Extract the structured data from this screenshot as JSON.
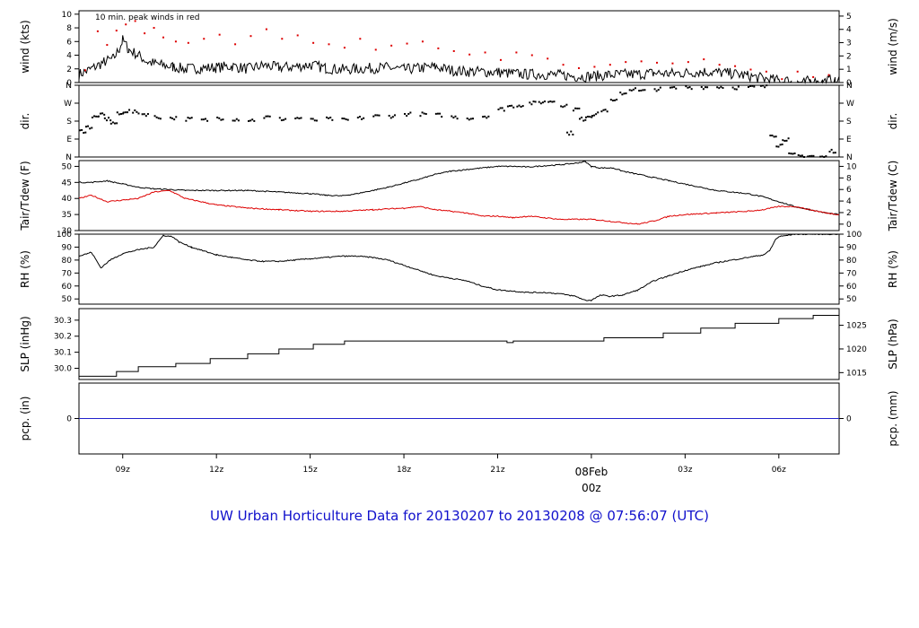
{
  "page_title": "UW Urban Horticulture Data for 20130207  to  20130208 @ 07:56:07  (UTC)",
  "colors": {
    "title": "#1111cc",
    "peak": "#dd0000",
    "dewpoint": "#dd0000",
    "precip": "#2222cc",
    "date_marker": "#dd0000",
    "line": "#000000"
  },
  "chart_data": [
    {
      "id": "wind",
      "type": "line",
      "ylabel": "wind (kts)",
      "ylabel_right": "wind (m/s)",
      "ylim": [
        0,
        10.5
      ],
      "yticks": [
        0,
        2,
        4,
        6,
        8,
        10
      ],
      "right_ylim": [
        0,
        5.4
      ],
      "right_yticks": [
        0,
        1,
        2,
        3,
        4,
        5
      ],
      "annotation": "10 min. peak winds in red",
      "series": [
        {
          "key": "speed",
          "color": "#000000",
          "style": "line",
          "x": [
            7.6,
            8.0,
            8.4,
            8.7,
            8.9,
            9.0,
            9.2,
            9.5,
            9.8,
            10.2,
            10.6,
            11.0,
            11.5,
            12.0,
            12.5,
            13.0,
            13.5,
            14.0,
            14.5,
            15.0,
            15.5,
            16.0,
            16.5,
            17.0,
            17.5,
            18.0,
            18.5,
            19.0,
            19.5,
            20.0,
            20.5,
            21.0,
            21.5,
            22.0,
            22.5,
            23.0,
            23.5,
            24.0,
            24.5,
            25.0,
            25.5,
            26.0,
            26.5,
            27.0,
            27.5,
            28.0,
            28.5,
            29.0,
            29.5,
            30.0,
            30.1,
            30.2,
            30.4,
            30.6,
            30.8,
            31.0,
            31.2,
            31.4,
            31.6,
            31.8,
            31.93
          ],
          "y": [
            1.2,
            2.0,
            3.0,
            3.5,
            5.0,
            6.2,
            4.8,
            4.0,
            3.0,
            2.6,
            2.3,
            2.0,
            2.1,
            2.2,
            2.4,
            2.0,
            2.5,
            2.2,
            2.3,
            2.6,
            2.1,
            1.9,
            2.0,
            2.1,
            2.2,
            1.9,
            2.1,
            2.3,
            1.8,
            1.6,
            1.6,
            1.5,
            1.3,
            1.2,
            1.2,
            1.1,
            0.9,
            0.9,
            1.1,
            1.2,
            1.2,
            1.4,
            1.3,
            1.4,
            1.6,
            1.5,
            1.3,
            1.0,
            0.6,
            0.3,
            0.0,
            0.4,
            0.0,
            0.0,
            0.0,
            0.3,
            0.0,
            0.0,
            0.4,
            0.0,
            0.3
          ]
        },
        {
          "key": "peak",
          "color": "#dd0000",
          "style": "dots",
          "x": [
            7.8,
            8.2,
            8.5,
            8.8,
            9.1,
            9.4,
            9.7,
            10.0,
            10.3,
            10.7,
            11.1,
            11.6,
            12.1,
            12.6,
            13.1,
            13.6,
            14.1,
            14.6,
            15.1,
            15.6,
            16.1,
            16.6,
            17.1,
            17.6,
            18.1,
            18.6,
            19.1,
            19.6,
            20.1,
            20.6,
            21.1,
            21.6,
            22.1,
            22.6,
            23.1,
            23.6,
            24.1,
            24.6,
            25.1,
            25.6,
            26.1,
            26.6,
            27.1,
            27.6,
            28.1,
            28.6,
            29.1,
            29.6,
            30.1,
            30.6,
            31.1,
            31.6
          ],
          "y": [
            1.8,
            7.5,
            5.5,
            7.6,
            8.5,
            9.0,
            7.2,
            8.0,
            6.6,
            6.0,
            5.8,
            6.4,
            7.0,
            5.6,
            6.8,
            7.8,
            6.4,
            6.9,
            5.8,
            5.6,
            5.1,
            6.4,
            4.8,
            5.4,
            5.7,
            6.0,
            5.0,
            4.6,
            4.1,
            4.4,
            3.3,
            4.4,
            4.0,
            3.5,
            2.6,
            2.1,
            2.3,
            2.6,
            3.0,
            3.1,
            2.9,
            2.8,
            3.0,
            3.4,
            2.6,
            2.4,
            1.9,
            1.6,
            0.5,
            1.6,
            0.8,
            1.1
          ]
        }
      ]
    },
    {
      "id": "direction",
      "type": "scatter",
      "ylabel": "dir.",
      "ylabel_right": "dir.",
      "ylim": [
        0,
        360
      ],
      "yticks": [
        0,
        90,
        180,
        270,
        360
      ],
      "ytick_labels": [
        "N",
        "E",
        "S",
        "W",
        "N"
      ],
      "series": [
        {
          "key": "dir",
          "color": "#000000",
          "style": "dots",
          "x": [
            7.6,
            7.8,
            8.0,
            8.2,
            8.4,
            8.6,
            8.8,
            9.0,
            9.3,
            9.6,
            10.0,
            10.5,
            11.0,
            11.5,
            12.0,
            12.5,
            13.0,
            13.5,
            14.0,
            14.5,
            15.0,
            15.5,
            16.0,
            16.5,
            17.0,
            17.5,
            18.0,
            18.5,
            19.0,
            19.5,
            20.0,
            20.5,
            21.0,
            21.3,
            21.6,
            22.0,
            22.3,
            22.6,
            23.0,
            23.2,
            23.4,
            23.6,
            23.8,
            24.0,
            24.3,
            24.6,
            24.9,
            25.2,
            25.5,
            26.0,
            26.5,
            27.0,
            27.5,
            28.0,
            28.5,
            29.0,
            29.4,
            29.7,
            29.9,
            30.1,
            30.3,
            30.6,
            30.9,
            31.3,
            31.6
          ],
          "y": [
            130,
            150,
            200,
            210,
            190,
            170,
            215,
            230,
            225,
            215,
            200,
            195,
            190,
            185,
            195,
            190,
            185,
            200,
            190,
            195,
            185,
            190,
            185,
            195,
            205,
            205,
            215,
            215,
            210,
            200,
            195,
            205,
            240,
            255,
            260,
            270,
            275,
            280,
            260,
            120,
            240,
            190,
            205,
            215,
            235,
            280,
            320,
            340,
            330,
            340,
            345,
            350,
            350,
            352,
            348,
            350,
            352,
            110,
            60,
            90,
            10,
            5,
            5,
            0,
            30
          ]
        }
      ]
    },
    {
      "id": "temperature",
      "type": "line",
      "ylabel": "Tair/Tdew (F)",
      "ylabel_right": "Tair/Tdew (C)",
      "ylim": [
        30,
        51.8
      ],
      "yticks": [
        30,
        35,
        40,
        45,
        50
      ],
      "right_ylim": [
        -1.11,
        11.0
      ],
      "right_yticks": [
        0,
        2,
        4,
        6,
        8,
        10
      ],
      "series": [
        {
          "key": "air",
          "color": "#000000",
          "style": "line",
          "x": [
            7.6,
            8.0,
            8.5,
            9.0,
            9.5,
            10.0,
            10.5,
            11.0,
            12.0,
            13.0,
            14.0,
            15.0,
            15.5,
            16.0,
            16.5,
            17.0,
            17.5,
            18.0,
            18.5,
            19.0,
            19.5,
            20.0,
            20.5,
            21.0,
            21.5,
            22.0,
            22.5,
            23.0,
            23.5,
            23.8,
            24.0,
            24.3,
            24.7,
            25.0,
            25.5,
            26.0,
            26.5,
            27.0,
            27.5,
            28.0,
            28.5,
            29.0,
            29.5,
            30.0,
            30.5,
            31.0,
            31.5,
            31.93
          ],
          "y": [
            45,
            45,
            45.5,
            44.5,
            43.5,
            43.0,
            42.8,
            42.5,
            42.5,
            42.5,
            42.0,
            41.5,
            41.0,
            40.8,
            41.5,
            42.5,
            43.5,
            44.8,
            46.0,
            47.5,
            48.5,
            49.0,
            49.5,
            50.0,
            50.0,
            49.8,
            50.2,
            50.5,
            51.0,
            51.5,
            50.0,
            49.5,
            49.5,
            48.5,
            47.5,
            46.5,
            45.5,
            44.5,
            43.5,
            42.5,
            42.0,
            41.5,
            40.5,
            39.0,
            37.5,
            36.5,
            35.5,
            35.0
          ]
        },
        {
          "key": "dew",
          "color": "#dd0000",
          "style": "line",
          "x": [
            7.6,
            8.0,
            8.5,
            9.0,
            9.5,
            10.0,
            10.5,
            11.0,
            12.0,
            13.0,
            14.0,
            15.0,
            16.0,
            17.0,
            18.0,
            18.5,
            19.0,
            19.5,
            20.0,
            20.5,
            21.0,
            21.5,
            22.0,
            22.5,
            23.0,
            23.5,
            24.0,
            24.5,
            25.0,
            25.5,
            26.0,
            26.5,
            27.0,
            28.0,
            29.0,
            29.5,
            30.0,
            30.5,
            31.0,
            31.5,
            31.93
          ],
          "y": [
            40.0,
            41.0,
            39.0,
            39.5,
            40.0,
            42.0,
            42.5,
            40.0,
            38.0,
            37.0,
            36.5,
            36.0,
            36.0,
            36.5,
            37.0,
            37.5,
            36.5,
            36.0,
            35.5,
            34.5,
            34.5,
            34.0,
            34.5,
            34.0,
            33.5,
            33.5,
            33.5,
            33.0,
            32.5,
            32.0,
            33.0,
            34.5,
            35.0,
            35.5,
            36.0,
            36.5,
            37.5,
            37.5,
            36.5,
            35.5,
            35.0
          ]
        }
      ]
    },
    {
      "id": "humidity",
      "type": "line",
      "ylabel": "RH (%)",
      "ylabel_right": "RH (%)",
      "ylim": [
        46,
        100
      ],
      "yticks": [
        50,
        60,
        70,
        80,
        90,
        100
      ],
      "series": [
        {
          "key": "rh",
          "color": "#000000",
          "style": "line",
          "x": [
            7.6,
            8.0,
            8.3,
            8.6,
            9.0,
            9.5,
            10.0,
            10.3,
            10.6,
            10.8,
            11.2,
            11.6,
            12.0,
            12.5,
            13.0,
            13.5,
            14.0,
            14.5,
            15.0,
            15.5,
            16.0,
            16.5,
            17.0,
            17.5,
            18.0,
            18.5,
            19.0,
            19.5,
            20.0,
            20.5,
            21.0,
            21.5,
            22.0,
            22.5,
            23.0,
            23.5,
            23.8,
            24.0,
            24.3,
            24.6,
            25.0,
            25.5,
            26.0,
            26.5,
            27.0,
            27.5,
            28.0,
            28.5,
            29.0,
            29.5,
            29.7,
            29.9,
            30.0,
            30.5,
            31.0,
            31.5,
            31.93
          ],
          "y": [
            83,
            86,
            74,
            80,
            85,
            88,
            90,
            99,
            98,
            94,
            90,
            87,
            84,
            82,
            80,
            79,
            79,
            80,
            81,
            82,
            83,
            83,
            82,
            80,
            76,
            72,
            68,
            66,
            64,
            60,
            57,
            56,
            55,
            55,
            54,
            52,
            49,
            49,
            53,
            52,
            53,
            57,
            64,
            68,
            72,
            75,
            78,
            80,
            82,
            84,
            87,
            96,
            98,
            100,
            100,
            100,
            100
          ]
        }
      ]
    },
    {
      "id": "pressure",
      "type": "line",
      "ylabel": "SLP (inHg)",
      "ylabel_right": "SLP (hPa)",
      "ylim": [
        29.93,
        30.372
      ],
      "yticks": [
        30.0,
        30.1,
        30.2,
        30.3
      ],
      "ytick_labels": [
        "30.0",
        "30.1",
        "30.2",
        "30.3"
      ],
      "right_ylim": [
        1013.55,
        1028.52
      ],
      "right_yticks": [
        1015,
        1020,
        1025
      ],
      "series": [
        {
          "key": "slp",
          "color": "#000000",
          "style": "step",
          "x": [
            7.6,
            8.8,
            9.5,
            10.7,
            11.8,
            13.0,
            14.0,
            15.1,
            16.1,
            21.3,
            21.5,
            24.4,
            26.3,
            27.5,
            28.6,
            30.0,
            31.1,
            31.93
          ],
          "y": [
            29.95,
            29.98,
            30.01,
            30.03,
            30.06,
            30.09,
            30.12,
            30.15,
            30.17,
            30.16,
            30.17,
            30.19,
            30.22,
            30.25,
            30.28,
            30.31,
            30.33,
            30.34
          ]
        }
      ]
    },
    {
      "id": "precip",
      "type": "line",
      "ylabel": "pcp. (in)",
      "ylabel_right": "pcp. (mm)",
      "ylim": [
        -1,
        1
      ],
      "yticks": [
        0
      ],
      "ytick_labels": [
        "0"
      ],
      "right_ylim": [
        -1,
        1
      ],
      "right_yticks": [
        0
      ],
      "right_ytick_labels": [
        "0"
      ],
      "series": [
        {
          "key": "pcp",
          "color": "#2222cc",
          "style": "line",
          "x": [
            7.6,
            31.93
          ],
          "y": [
            0,
            0
          ]
        }
      ]
    }
  ],
  "time_axis": {
    "xlim": [
      7.6,
      31.93
    ],
    "ticks": [
      {
        "x": 9,
        "label": "09z"
      },
      {
        "x": 12,
        "label": "12z"
      },
      {
        "x": 15,
        "label": "15z"
      },
      {
        "x": 18,
        "label": "18z"
      },
      {
        "x": 21,
        "label": "21z"
      },
      {
        "x": 24,
        "label": "08Feb",
        "sublabel": "00z"
      },
      {
        "x": 27,
        "label": "03z"
      },
      {
        "x": 30,
        "label": "06z"
      }
    ]
  }
}
